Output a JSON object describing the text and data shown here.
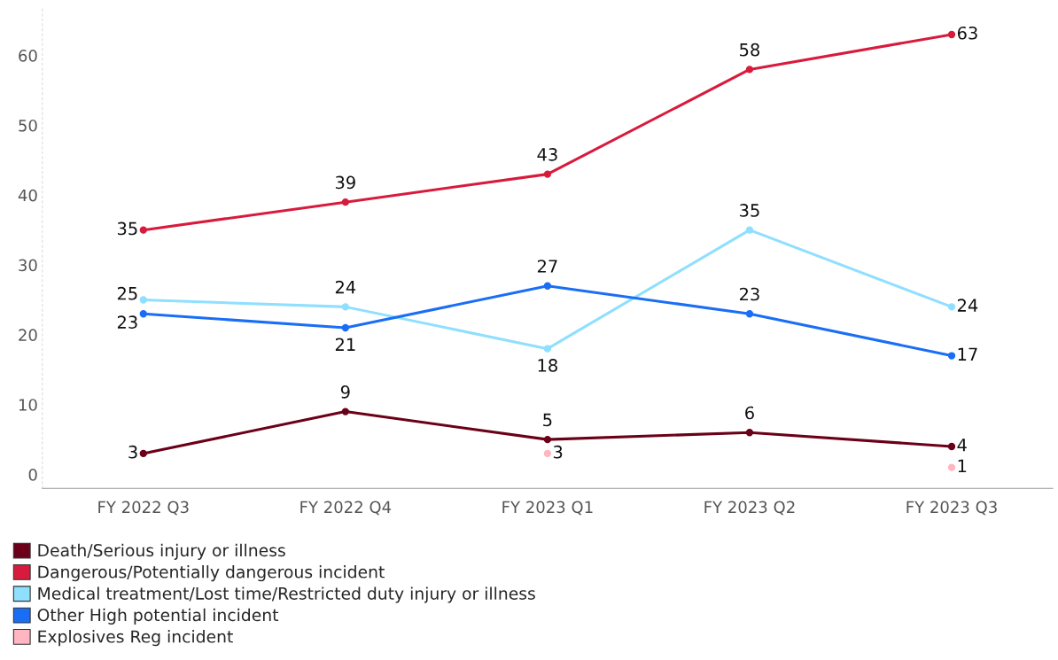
{
  "chart_data": {
    "type": "line",
    "categories": [
      "FY 2022 Q3",
      "FY 2022 Q4",
      "FY 2023 Q1",
      "FY 2023 Q2",
      "FY 2023 Q3"
    ],
    "series": [
      {
        "name": "Death/Serious injury or illness",
        "color": "#6b0019",
        "values": [
          3,
          9,
          5,
          6,
          4
        ]
      },
      {
        "name": "Dangerous/Potentially dangerous incident",
        "color": "#d81b3c",
        "values": [
          35,
          39,
          43,
          58,
          63
        ]
      },
      {
        "name": "Medical treatment/Lost time/Restricted duty injury or illness",
        "color": "#8fdfff",
        "values": [
          25,
          24,
          18,
          35,
          24
        ]
      },
      {
        "name": "Other High potential incident",
        "color": "#1a6ef5",
        "values": [
          23,
          21,
          27,
          23,
          17
        ]
      },
      {
        "name": "Explosives Reg incident",
        "type": "scatter",
        "color": "#ffb6c1",
        "values": [
          null,
          null,
          3,
          null,
          1
        ]
      }
    ],
    "ylim": [
      -2,
      67
    ],
    "yticks": [
      0,
      10,
      20,
      30,
      40,
      50,
      60
    ],
    "data_labels": true,
    "grid": false,
    "legend": "bottom left",
    "marker": "circle",
    "line_style": "solid"
  }
}
